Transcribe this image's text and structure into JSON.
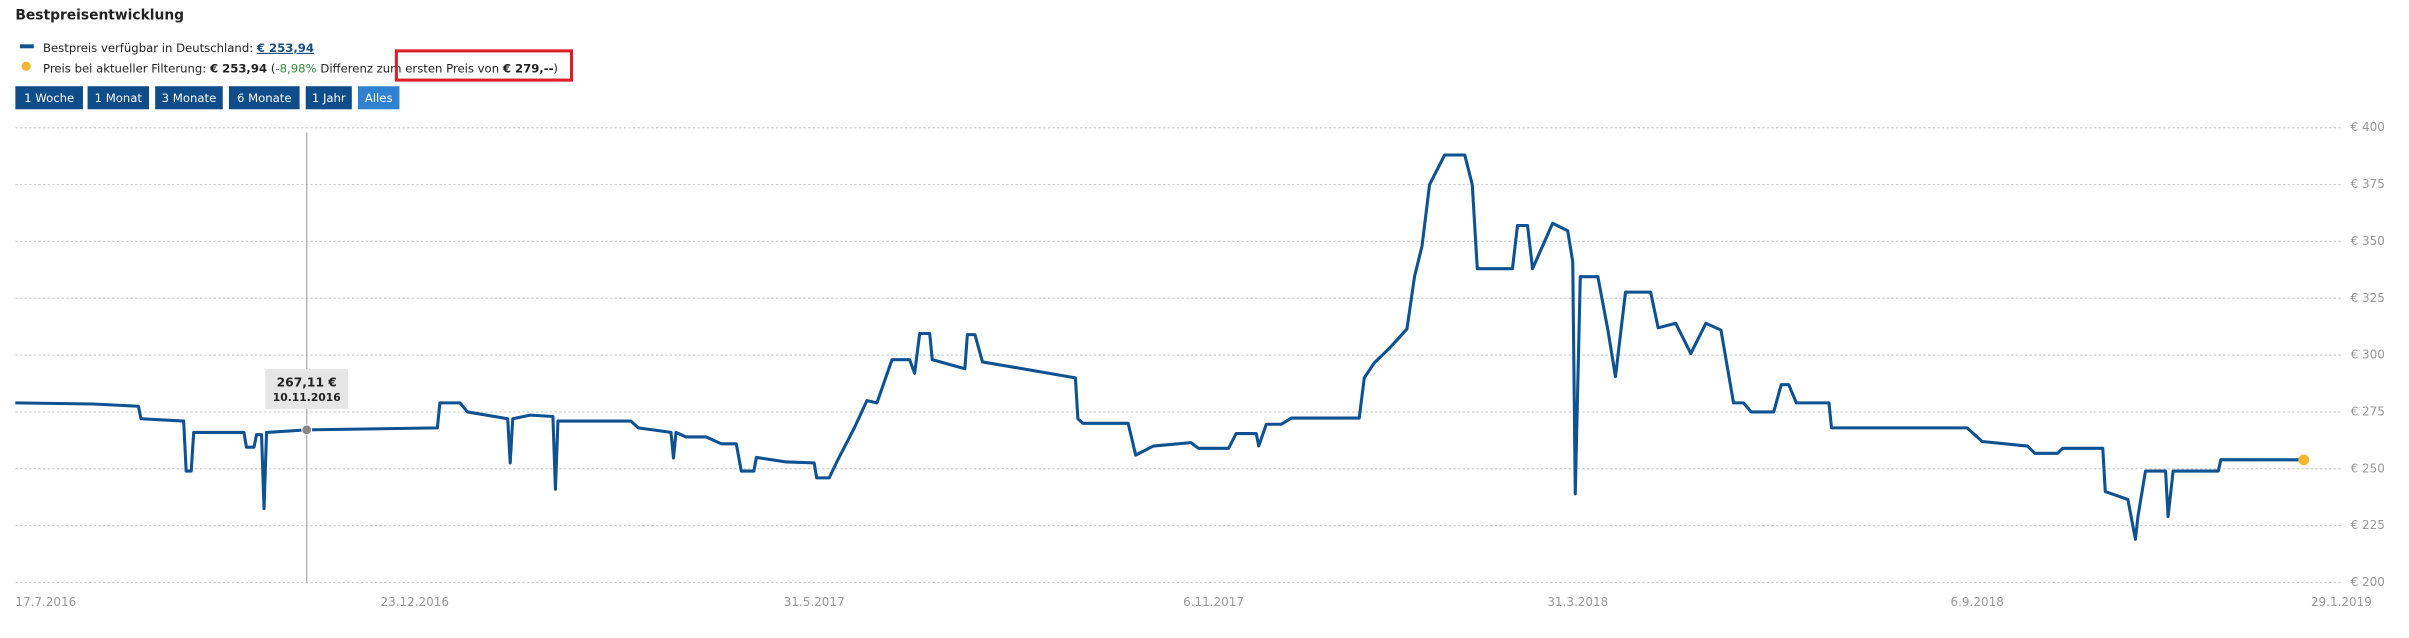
{
  "header": {
    "title": "Bestpreisentwicklung"
  },
  "legend": {
    "best_price": "€ 253,94"
  },
  "filter_note": [
    "Preis bei aktueller Filterung:",
    "€ 253,94",
    "(",
    "-8,98%",
    "Differenz zum ersten Preis von",
    "€ 279,--",
    ")"
  ],
  "buttons": [
    {
      "label": "1 Woche"
    },
    {
      "label": "1 Monat"
    },
    {
      "label": "3 Monate"
    },
    {
      "label": "6 Monate"
    },
    {
      "label": "1 Jahr"
    },
    {
      "label": "Alles",
      "selected": true
    }
  ],
  "chart_data": {
    "type": "line",
    "x": [
      "2016-07-17",
      "2016-08-17",
      "2016-09-04",
      "2016-09-05",
      "2016-09-22",
      "2016-09-23",
      "2016-09-25",
      "2016-09-26",
      "2016-10-16",
      "2016-10-17",
      "2016-10-20",
      "2016-10-21",
      "2016-10-23",
      "2016-10-24",
      "2016-10-25",
      "2016-11-10",
      "2017-01-01",
      "2017-01-02",
      "2017-01-10",
      "2017-01-13",
      "2017-01-29",
      "2017-01-30",
      "2017-01-31",
      "2017-02-07",
      "2017-02-16",
      "2017-02-17",
      "2017-02-18",
      "2017-03-19",
      "2017-03-22",
      "2017-04-04",
      "2017-04-05",
      "2017-04-06",
      "2017-04-10",
      "2017-04-18",
      "2017-04-24",
      "2017-04-30",
      "2017-05-02",
      "2017-05-07",
      "2017-05-08",
      "2017-05-20",
      "2017-05-31",
      "2017-06-01",
      "2017-06-06",
      "2017-06-09",
      "2017-06-16",
      "2017-06-21",
      "2017-06-25",
      "2017-07-01",
      "2017-07-08",
      "2017-07-10",
      "2017-07-12",
      "2017-07-16",
      "2017-07-17",
      "2017-07-30",
      "2017-07-31",
      "2017-08-03",
      "2017-08-06",
      "2017-08-22",
      "2017-09-12",
      "2017-09-13",
      "2017-09-15",
      "2017-10-03",
      "2017-10-06",
      "2017-10-13",
      "2017-10-28",
      "2017-10-31",
      "2017-11-12",
      "2017-11-15",
      "2017-11-23",
      "2017-11-24",
      "2017-11-27",
      "2017-12-03",
      "2017-12-07",
      "2018-01-03",
      "2018-01-05",
      "2018-01-09",
      "2018-01-15",
      "2018-01-22",
      "2018-01-25",
      "2018-01-28",
      "2018-01-31",
      "2018-02-06",
      "2018-02-14",
      "2018-02-17",
      "2018-02-19",
      "2018-03-05",
      "2018-03-07",
      "2018-03-11",
      "2018-03-13",
      "2018-03-21",
      "2018-03-27",
      "2018-03-29",
      "2018-03-30",
      "2018-04-01",
      "2018-04-08",
      "2018-04-12",
      "2018-04-15",
      "2018-04-19",
      "2018-04-29",
      "2018-05-02",
      "2018-05-09",
      "2018-05-15",
      "2018-05-21",
      "2018-05-27",
      "2018-06-01",
      "2018-06-05",
      "2018-06-08",
      "2018-06-17",
      "2018-06-20",
      "2018-06-23",
      "2018-06-26",
      "2018-07-09",
      "2018-07-10",
      "2018-09-02",
      "2018-09-08",
      "2018-09-26",
      "2018-09-29",
      "2018-10-08",
      "2018-10-10",
      "2018-10-26",
      "2018-10-27",
      "2018-11-05",
      "2018-11-08",
      "2018-11-09",
      "2018-11-12",
      "2018-11-20",
      "2018-11-21",
      "2018-11-23",
      "2018-12-11",
      "2018-12-12",
      "2019-01-14"
    ],
    "series": [
      {
        "name": "Bestpreis verfügbar in Deutschland:",
        "color": "#0e5291",
        "values": [
          279,
          278.5,
          277.5,
          272,
          271,
          249,
          249,
          266,
          266,
          259.5,
          259.5,
          265,
          265,
          232.5,
          266,
          267.11,
          268,
          279,
          279,
          275,
          272,
          252.6,
          272,
          273.6,
          273,
          241,
          271,
          271,
          268,
          266,
          254.7,
          266,
          264,
          264,
          261,
          261,
          249,
          249,
          255,
          253,
          252.6,
          246,
          246,
          253,
          268,
          280,
          279,
          298,
          298,
          292,
          309.5,
          309.5,
          298,
          294,
          309,
          309,
          297,
          294,
          290,
          272,
          270,
          270,
          256,
          260,
          261.5,
          259,
          259,
          265.5,
          265.5,
          260,
          269.6,
          269.6,
          272.3,
          272.3,
          290,
          296.6,
          303,
          311.5,
          334.5,
          348,
          375,
          388,
          388,
          375,
          338,
          338,
          357,
          357,
          338,
          358,
          354.7,
          341,
          239,
          334.5,
          334.5,
          311,
          290.5,
          327.7,
          327.7,
          312,
          314,
          300.7,
          314,
          311,
          279,
          279,
          275,
          275,
          287,
          287,
          279,
          279,
          268,
          268,
          262,
          260,
          256.8,
          256.8,
          259,
          259,
          240,
          236.5,
          219,
          229,
          249,
          249,
          229,
          249,
          249,
          254,
          253.94
        ]
      }
    ],
    "current_color": "#f2b630",
    "tooltip": {
      "x": "2016-11-10",
      "value": 267.11,
      "value_label": "267,11 €",
      "x_label": "10.11.2016"
    },
    "xlim": [
      "2016-07-17",
      "2019-01-29"
    ],
    "xticks": [
      {
        "value": "2016-07-17",
        "label": "17.7.2016"
      },
      {
        "value": "2016-12-23",
        "label": "23.12.2016"
      },
      {
        "value": "2017-05-31",
        "label": "31.5.2017"
      },
      {
        "value": "2017-11-06",
        "label": "6.11.2017"
      },
      {
        "value": "2018-03-31",
        "label": "31.3.2018"
      },
      {
        "value": "2018-09-06",
        "label": "6.9.2018"
      },
      {
        "value": "2019-01-29",
        "label": "29.1.2019"
      }
    ],
    "ylim": [
      200,
      400
    ],
    "yticks": [
      {
        "value": 200,
        "label": "€ 200"
      },
      {
        "value": 225,
        "label": "€ 225"
      },
      {
        "value": 250,
        "label": "€ 250"
      },
      {
        "value": 275,
        "label": "€ 275"
      },
      {
        "value": 300,
        "label": "€ 300"
      },
      {
        "value": 325,
        "label": "€ 325"
      },
      {
        "value": 350,
        "label": "€ 350"
      },
      {
        "value": 375,
        "label": "€ 375"
      },
      {
        "value": 400,
        "label": "€ 400"
      }
    ],
    "grid": true
  }
}
